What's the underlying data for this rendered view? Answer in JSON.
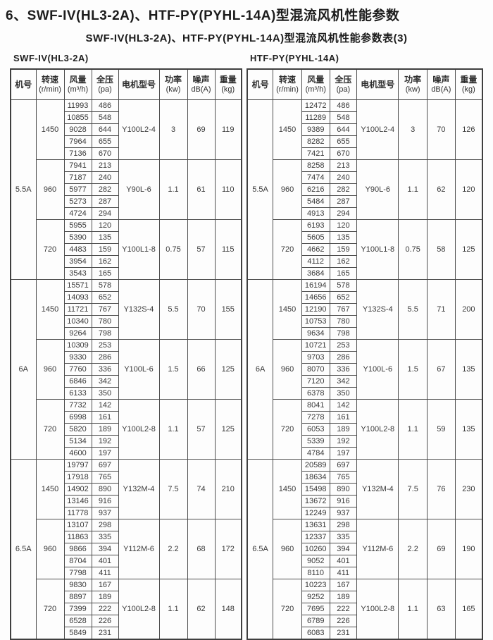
{
  "page": {
    "title": "6、SWF-IV(HL3-2A)、HTF-PY(PYHL-14A)型混流风机性能参数",
    "subtitle": "SWF-IV(HL3-2A)、HTF-PY(PYHL-14A)型混流风机性能参数表(3)"
  },
  "columns": [
    {
      "label": "机号",
      "sub": ""
    },
    {
      "label": "转速",
      "sub": "(r/min)"
    },
    {
      "label": "风量",
      "sub": "(m³/h)"
    },
    {
      "label": "全压",
      "sub": "(pa)"
    },
    {
      "label": "电机型号",
      "sub": ""
    },
    {
      "label": "功率",
      "sub": "(kw)"
    },
    {
      "label": "噪声",
      "sub": "dB(A)"
    },
    {
      "label": "重量",
      "sub": "(kg)"
    }
  ],
  "tables": [
    {
      "label": "SWF-IV(HL3-2A)",
      "sections": [
        {
          "model": "5.5A",
          "groups": [
            {
              "speed": "1450",
              "rows": [
                [
                  "11993",
                  "486"
                ],
                [
                  "10855",
                  "548"
                ],
                [
                  "9028",
                  "644"
                ],
                [
                  "7964",
                  "655"
                ],
                [
                  "7136",
                  "670"
                ]
              ],
              "motor": "Y100L2-4",
              "power": "3",
              "noise": "69",
              "weight": "119"
            },
            {
              "speed": "960",
              "rows": [
                [
                  "7941",
                  "213"
                ],
                [
                  "7187",
                  "240"
                ],
                [
                  "5977",
                  "282"
                ],
                [
                  "5273",
                  "287"
                ],
                [
                  "4724",
                  "294"
                ]
              ],
              "motor": "Y90L-6",
              "power": "1.1",
              "noise": "61",
              "weight": "110"
            },
            {
              "speed": "720",
              "rows": [
                [
                  "5955",
                  "120"
                ],
                [
                  "5390",
                  "135"
                ],
                [
                  "4483",
                  "159"
                ],
                [
                  "3954",
                  "162"
                ],
                [
                  "3543",
                  "165"
                ]
              ],
              "motor": "Y100L1-8",
              "power": "0.75",
              "noise": "57",
              "weight": "115"
            }
          ]
        },
        {
          "model": "6A",
          "groups": [
            {
              "speed": "1450",
              "rows": [
                [
                  "15571",
                  "578"
                ],
                [
                  "14093",
                  "652"
                ],
                [
                  "11721",
                  "767"
                ],
                [
                  "10340",
                  "780"
                ],
                [
                  "9264",
                  "798"
                ]
              ],
              "motor": "Y132S-4",
              "power": "5.5",
              "noise": "70",
              "weight": "155"
            },
            {
              "speed": "960",
              "rows": [
                [
                  "10309",
                  "253"
                ],
                [
                  "9330",
                  "286"
                ],
                [
                  "7760",
                  "336"
                ],
                [
                  "6846",
                  "342"
                ],
                [
                  "6133",
                  "350"
                ]
              ],
              "motor": "Y100L-6",
              "power": "1.5",
              "noise": "66",
              "weight": "125"
            },
            {
              "speed": "720",
              "rows": [
                [
                  "7732",
                  "142"
                ],
                [
                  "6998",
                  "161"
                ],
                [
                  "5820",
                  "189"
                ],
                [
                  "5134",
                  "192"
                ],
                [
                  "4600",
                  "197"
                ]
              ],
              "motor": "Y100L2-8",
              "power": "1.1",
              "noise": "57",
              "weight": "125"
            }
          ]
        },
        {
          "model": "6.5A",
          "groups": [
            {
              "speed": "1450",
              "rows": [
                [
                  "19797",
                  "697"
                ],
                [
                  "17918",
                  "765"
                ],
                [
                  "14902",
                  "890"
                ],
                [
                  "13146",
                  "916"
                ],
                [
                  "11778",
                  "937"
                ]
              ],
              "motor": "Y132M-4",
              "power": "7.5",
              "noise": "74",
              "weight": "210"
            },
            {
              "speed": "960",
              "rows": [
                [
                  "13107",
                  "298"
                ],
                [
                  "11863",
                  "335"
                ],
                [
                  "9866",
                  "394"
                ],
                [
                  "8704",
                  "401"
                ],
                [
                  "7798",
                  "411"
                ]
              ],
              "motor": "Y112M-6",
              "power": "2.2",
              "noise": "68",
              "weight": "172"
            },
            {
              "speed": "720",
              "rows": [
                [
                  "9830",
                  "167"
                ],
                [
                  "8897",
                  "189"
                ],
                [
                  "7399",
                  "222"
                ],
                [
                  "6528",
                  "226"
                ],
                [
                  "5849",
                  "231"
                ]
              ],
              "motor": "Y100L2-8",
              "power": "1.1",
              "noise": "62",
              "weight": "148"
            }
          ]
        }
      ]
    },
    {
      "label": "HTF-PY(PYHL-14A)",
      "sections": [
        {
          "model": "5.5A",
          "groups": [
            {
              "speed": "1450",
              "rows": [
                [
                  "12472",
                  "486"
                ],
                [
                  "11289",
                  "548"
                ],
                [
                  "9389",
                  "644"
                ],
                [
                  "8282",
                  "655"
                ],
                [
                  "7421",
                  "670"
                ]
              ],
              "motor": "Y100L2-4",
              "power": "3",
              "noise": "70",
              "weight": "126"
            },
            {
              "speed": "960",
              "rows": [
                [
                  "8258",
                  "213"
                ],
                [
                  "7474",
                  "240"
                ],
                [
                  "6216",
                  "282"
                ],
                [
                  "5484",
                  "287"
                ],
                [
                  "4913",
                  "294"
                ]
              ],
              "motor": "Y90L-6",
              "power": "1.1",
              "noise": "62",
              "weight": "120"
            },
            {
              "speed": "720",
              "rows": [
                [
                  "6193",
                  "120"
                ],
                [
                  "5605",
                  "135"
                ],
                [
                  "4662",
                  "159"
                ],
                [
                  "4112",
                  "162"
                ],
                [
                  "3684",
                  "165"
                ]
              ],
              "motor": "Y100L1-8",
              "power": "0.75",
              "noise": "58",
              "weight": "125"
            }
          ]
        },
        {
          "model": "6A",
          "groups": [
            {
              "speed": "1450",
              "rows": [
                [
                  "16194",
                  "578"
                ],
                [
                  "14656",
                  "652"
                ],
                [
                  "12190",
                  "767"
                ],
                [
                  "10753",
                  "780"
                ],
                [
                  "9634",
                  "798"
                ]
              ],
              "motor": "Y132S-4",
              "power": "5.5",
              "noise": "71",
              "weight": "200"
            },
            {
              "speed": "960",
              "rows": [
                [
                  "10721",
                  "253"
                ],
                [
                  "9703",
                  "286"
                ],
                [
                  "8070",
                  "336"
                ],
                [
                  "7120",
                  "342"
                ],
                [
                  "6378",
                  "350"
                ]
              ],
              "motor": "Y100L-6",
              "power": "1.5",
              "noise": "67",
              "weight": "135"
            },
            {
              "speed": "720",
              "rows": [
                [
                  "8041",
                  "142"
                ],
                [
                  "7278",
                  "161"
                ],
                [
                  "6053",
                  "189"
                ],
                [
                  "5339",
                  "192"
                ],
                [
                  "4784",
                  "197"
                ]
              ],
              "motor": "Y100L2-8",
              "power": "1.1",
              "noise": "59",
              "weight": "135"
            }
          ]
        },
        {
          "model": "6.5A",
          "groups": [
            {
              "speed": "1450",
              "rows": [
                [
                  "20589",
                  "697"
                ],
                [
                  "18634",
                  "765"
                ],
                [
                  "15498",
                  "890"
                ],
                [
                  "13672",
                  "916"
                ],
                [
                  "12249",
                  "937"
                ]
              ],
              "motor": "Y132M-4",
              "power": "7.5",
              "noise": "76",
              "weight": "230"
            },
            {
              "speed": "960",
              "rows": [
                [
                  "13631",
                  "298"
                ],
                [
                  "12337",
                  "335"
                ],
                [
                  "10260",
                  "394"
                ],
                [
                  "9052",
                  "401"
                ],
                [
                  "8110",
                  "411"
                ]
              ],
              "motor": "Y112M-6",
              "power": "2.2",
              "noise": "69",
              "weight": "190"
            },
            {
              "speed": "720",
              "rows": [
                [
                  "10223",
                  "167"
                ],
                [
                  "9252",
                  "189"
                ],
                [
                  "7695",
                  "222"
                ],
                [
                  "6789",
                  "226"
                ],
                [
                  "6083",
                  "231"
                ]
              ],
              "motor": "Y100L2-8",
              "power": "1.1",
              "noise": "63",
              "weight": "165"
            }
          ]
        }
      ]
    }
  ]
}
